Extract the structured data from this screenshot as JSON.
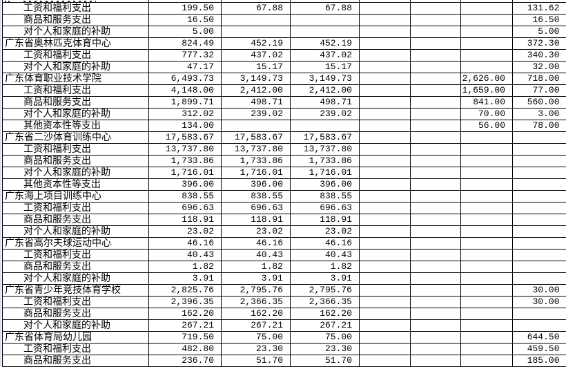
{
  "colors": {
    "grid": "#000000",
    "background": "#ffffff",
    "text": "#000000",
    "left_strip": "#f0f4fa"
  },
  "table": {
    "rows": [
      {
        "type": "partial",
        "label": "",
        "values": [
          "",
          "",
          "",
          "",
          "",
          "",
          ""
        ]
      },
      {
        "type": "item",
        "label": "工资和福利支出",
        "values": [
          "199.50",
          "67.88",
          "67.88",
          "",
          "",
          "",
          "131.62"
        ]
      },
      {
        "type": "item",
        "label": "商品和服务支出",
        "values": [
          "16.50",
          "",
          "",
          "",
          "",
          "",
          "16.50"
        ]
      },
      {
        "type": "item",
        "label": "对个人和家庭的补助",
        "values": [
          "5.00",
          "",
          "",
          "",
          "",
          "",
          "5.00"
        ]
      },
      {
        "type": "institution",
        "label": "广东省奥林匹克体育中心",
        "values": [
          "824.49",
          "452.19",
          "452.19",
          "",
          "",
          "",
          "372.30"
        ]
      },
      {
        "type": "item",
        "label": "工资和福利支出",
        "values": [
          "777.32",
          "437.02",
          "437.02",
          "",
          "",
          "",
          "340.30"
        ]
      },
      {
        "type": "item",
        "label": "对个人和家庭的补助",
        "values": [
          "47.17",
          "15.17",
          "15.17",
          "",
          "",
          "",
          "32.00"
        ]
      },
      {
        "type": "institution",
        "label": "广东体育职业技术学院",
        "values": [
          "6,493.73",
          "3,149.73",
          "3,149.73",
          "",
          "",
          "2,626.00",
          "718.00"
        ]
      },
      {
        "type": "item",
        "label": "工资和福利支出",
        "values": [
          "4,148.00",
          "2,412.00",
          "2,412.00",
          "",
          "",
          "1,659.00",
          "77.00"
        ]
      },
      {
        "type": "item",
        "label": "商品和服务支出",
        "values": [
          "1,899.71",
          "498.71",
          "498.71",
          "",
          "",
          "841.00",
          "560.00"
        ]
      },
      {
        "type": "item",
        "label": "对个人和家庭的补助",
        "values": [
          "312.02",
          "239.02",
          "239.02",
          "",
          "",
          "70.00",
          "3.00"
        ]
      },
      {
        "type": "item",
        "label": "其他资本性等支出",
        "values": [
          "134.00",
          "",
          "",
          "",
          "",
          "56.00",
          "78.00"
        ]
      },
      {
        "type": "institution",
        "label": "广东省二沙体育训练中心",
        "values": [
          "17,583.67",
          "17,583.67",
          "17,583.67",
          "",
          "",
          "",
          ""
        ]
      },
      {
        "type": "item",
        "label": "工资和福利支出",
        "values": [
          "13,737.80",
          "13,737.80",
          "13,737.80",
          "",
          "",
          "",
          ""
        ]
      },
      {
        "type": "item",
        "label": "商品和服务支出",
        "values": [
          "1,733.86",
          "1,733.86",
          "1,733.86",
          "",
          "",
          "",
          ""
        ]
      },
      {
        "type": "item",
        "label": "对个人和家庭的补助",
        "values": [
          "1,716.01",
          "1,716.01",
          "1,716.01",
          "",
          "",
          "",
          ""
        ]
      },
      {
        "type": "item",
        "label": "其他资本性等支出",
        "values": [
          "396.00",
          "396.00",
          "396.00",
          "",
          "",
          "",
          ""
        ]
      },
      {
        "type": "institution",
        "label": "广东海上项目训练中心",
        "values": [
          "838.55",
          "838.55",
          "838.55",
          "",
          "",
          "",
          ""
        ]
      },
      {
        "type": "item",
        "label": "工资和福利支出",
        "values": [
          "696.63",
          "696.63",
          "696.63",
          "",
          "",
          "",
          ""
        ]
      },
      {
        "type": "item",
        "label": "商品和服务支出",
        "values": [
          "118.91",
          "118.91",
          "118.91",
          "",
          "",
          "",
          ""
        ]
      },
      {
        "type": "item",
        "label": "对个人和家庭的补助",
        "values": [
          "23.02",
          "23.02",
          "23.02",
          "",
          "",
          "",
          ""
        ]
      },
      {
        "type": "institution",
        "label": "广东省高尔夫球运动中心",
        "values": [
          "46.16",
          "46.16",
          "46.16",
          "",
          "",
          "",
          ""
        ]
      },
      {
        "type": "item",
        "label": "工资和福利支出",
        "values": [
          "40.43",
          "40.43",
          "40.43",
          "",
          "",
          "",
          ""
        ]
      },
      {
        "type": "item",
        "label": "商品和服务支出",
        "values": [
          "1.82",
          "1.82",
          "1.82",
          "",
          "",
          "",
          ""
        ]
      },
      {
        "type": "item",
        "label": "对个人和家庭的补助",
        "values": [
          "3.91",
          "3.91",
          "3.91",
          "",
          "",
          "",
          ""
        ]
      },
      {
        "type": "institution",
        "label": "广东省青少年竞技体育学校",
        "values": [
          "2,825.76",
          "2,795.76",
          "2,795.76",
          "",
          "",
          "",
          "30.00"
        ]
      },
      {
        "type": "item",
        "label": "工资和福利支出",
        "values": [
          "2,396.35",
          "2,366.35",
          "2,366.35",
          "",
          "",
          "",
          "30.00"
        ]
      },
      {
        "type": "item",
        "label": "商品和服务支出",
        "values": [
          "162.20",
          "162.20",
          "162.20",
          "",
          "",
          "",
          ""
        ]
      },
      {
        "type": "item",
        "label": "对个人和家庭的补助",
        "values": [
          "267.21",
          "267.21",
          "267.21",
          "",
          "",
          "",
          ""
        ]
      },
      {
        "type": "institution",
        "label": "广东省体育局幼儿园",
        "values": [
          "719.50",
          "75.00",
          "75.00",
          "",
          "",
          "",
          "644.50"
        ]
      },
      {
        "type": "item",
        "label": "工资和福利支出",
        "values": [
          "482.80",
          "23.30",
          "23.30",
          "",
          "",
          "",
          "459.50"
        ]
      },
      {
        "type": "item",
        "label": "商品和服务支出",
        "values": [
          "236.70",
          "51.70",
          "51.70",
          "",
          "",
          "",
          "185.00"
        ]
      }
    ]
  }
}
